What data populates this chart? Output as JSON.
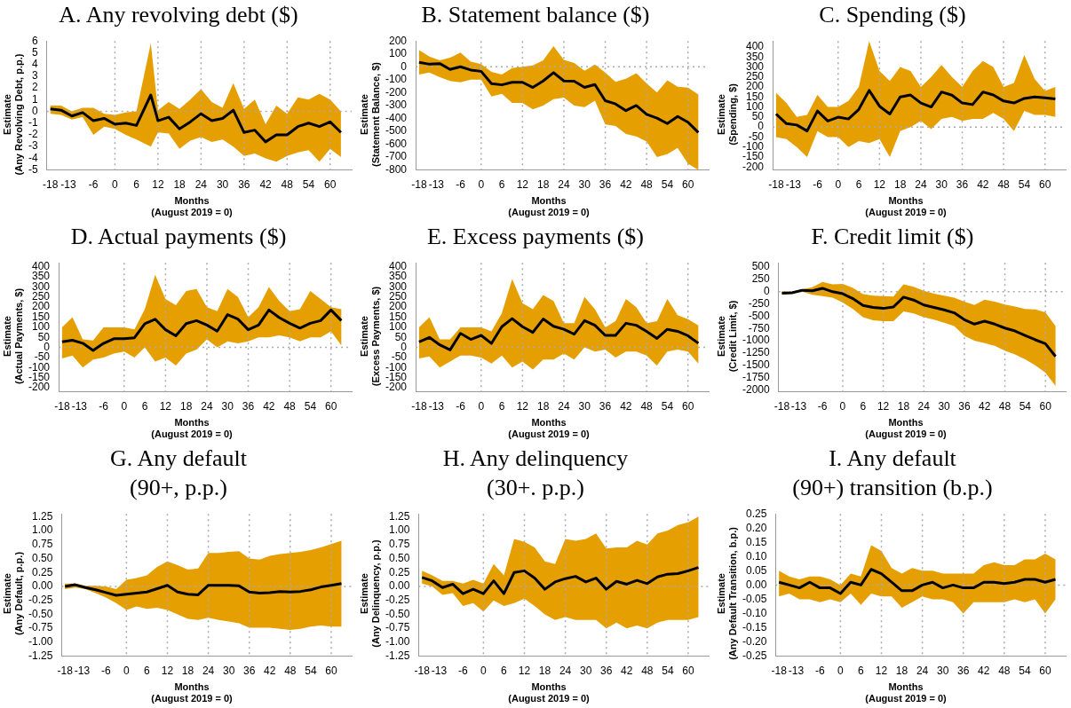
{
  "chart_data": [
    {
      "type": "line",
      "title": "A. Any revolving debt ($)",
      "xlabel": "Months\n(August 2019 = 0)",
      "ylabel": "Estimate\n(Any Revolving Debt, p.p.)",
      "x": [
        -18,
        -15,
        -12,
        -9,
        -6,
        -3,
        0,
        3,
        6,
        10,
        12,
        15,
        18,
        21,
        24,
        27,
        30,
        33,
        36,
        39,
        42,
        45,
        48,
        51,
        54,
        57,
        60,
        63
      ],
      "xlim": [
        -19,
        66
      ],
      "xticks": [
        -18,
        -13,
        -6,
        0,
        6,
        12,
        18,
        24,
        30,
        36,
        42,
        48,
        54,
        60
      ],
      "ylim": [
        -5,
        6
      ],
      "yticks": [
        -5,
        -4,
        -3,
        -2,
        -1,
        0,
        1,
        2,
        3,
        4,
        5,
        6
      ],
      "series": [
        {
          "color": "#000000",
          "values": [
            0.2,
            0.1,
            -0.4,
            -0.1,
            -0.8,
            -0.6,
            -1.1,
            -1.0,
            -1.2,
            1.4,
            -0.8,
            -0.5,
            -1.5,
            -0.9,
            -0.2,
            -0.8,
            -0.6,
            0.1,
            -1.8,
            -1.6,
            -2.6,
            -2.0,
            -2.0,
            -1.3,
            -1.0,
            -1.3,
            -0.9,
            -1.8
          ],
          "upper": [
            0.5,
            0.5,
            0,
            0.3,
            0.3,
            -0.2,
            -0.3,
            -0.1,
            0,
            5.8,
            0.1,
            0.8,
            0.2,
            1.0,
            1.9,
            0.8,
            0.3,
            2.4,
            0.2,
            1.0,
            -1.1,
            0.5,
            -0.2,
            1.2,
            1.0,
            1.5,
            1.0,
            0
          ],
          "lower": [
            -0.2,
            -0.3,
            -0.7,
            -0.5,
            -2.0,
            -1.3,
            -1.5,
            -2.0,
            -2.4,
            -3.0,
            -1.8,
            -1.9,
            -3.2,
            -2.5,
            -2.2,
            -2.6,
            -2.4,
            -3.0,
            -3.8,
            -3.6,
            -4.0,
            -4.3,
            -3.8,
            -3.5,
            -3.3,
            -4.3,
            -3.2,
            -3.9
          ]
        }
      ],
      "ref_lines": [
        {
          "axis": "x",
          "value": 0,
          "color": "#aaaaaa",
          "line_style": "dotted"
        },
        {
          "axis": "x",
          "value": 12,
          "color": "#aaaaaa",
          "line_style": "dotted"
        },
        {
          "axis": "x",
          "value": 24,
          "color": "#aaaaaa",
          "line_style": "dotted"
        },
        {
          "axis": "x",
          "value": 36,
          "color": "#aaaaaa",
          "line_style": "dotted"
        },
        {
          "axis": "x",
          "value": 48,
          "color": "#aaaaaa",
          "line_style": "dotted"
        },
        {
          "axis": "x",
          "value": 60,
          "color": "#aaaaaa",
          "line_style": "dotted"
        },
        {
          "axis": "y",
          "value": 0,
          "color": "#aaaaaa",
          "line_style": "dotted"
        }
      ]
    },
    {
      "type": "line",
      "title": "B. Statement balance ($)",
      "xlabel": "Months\n(August 2019 = 0)",
      "ylabel": "Estimate\n(Statement Balance, $)",
      "x": [
        -18,
        -15,
        -12,
        -9,
        -6,
        -3,
        0,
        3,
        6,
        9,
        12,
        15,
        18,
        21,
        24,
        27,
        30,
        33,
        36,
        39,
        42,
        45,
        48,
        51,
        54,
        57,
        60,
        63
      ],
      "xlim": [
        -19,
        66
      ],
      "xticks": [
        -18,
        -13,
        -6,
        0,
        6,
        12,
        18,
        24,
        30,
        36,
        42,
        48,
        54,
        60
      ],
      "ylim": [
        -800,
        200
      ],
      "yticks": [
        -800,
        -700,
        -600,
        -500,
        -400,
        -300,
        -200,
        -100,
        0,
        100,
        200
      ],
      "series": [
        {
          "color": "#000000",
          "values": [
            34,
            20,
            25,
            -20,
            0,
            -25,
            -35,
            -130,
            -140,
            -120,
            -120,
            -160,
            -110,
            -45,
            -110,
            -112,
            -160,
            -137,
            -263,
            -288,
            -340,
            -300,
            -368,
            -398,
            -440,
            -385,
            -430,
            -510
          ],
          "upper": [
            130,
            80,
            50,
            70,
            110,
            40,
            20,
            -40,
            -60,
            -10,
            0,
            10,
            50,
            160,
            54,
            29,
            -30,
            17,
            -44,
            -117,
            -93,
            -50,
            -129,
            -200,
            -105,
            -154,
            -161,
            -215
          ],
          "lower": [
            -60,
            -45,
            -80,
            -110,
            -120,
            -100,
            -100,
            -230,
            -210,
            -280,
            -280,
            -330,
            -300,
            -250,
            -239,
            -300,
            -312,
            -263,
            -446,
            -459,
            -520,
            -540,
            -580,
            -700,
            -678,
            -629,
            -751,
            -800
          ]
        }
      ],
      "ref_lines": [
        {
          "axis": "x",
          "value": 0,
          "color": "#aaaaaa",
          "line_style": "dotted"
        },
        {
          "axis": "x",
          "value": 12,
          "color": "#aaaaaa",
          "line_style": "dotted"
        },
        {
          "axis": "x",
          "value": 24,
          "color": "#aaaaaa",
          "line_style": "dotted"
        },
        {
          "axis": "x",
          "value": 36,
          "color": "#aaaaaa",
          "line_style": "dotted"
        },
        {
          "axis": "x",
          "value": 48,
          "color": "#aaaaaa",
          "line_style": "dotted"
        },
        {
          "axis": "x",
          "value": 60,
          "color": "#aaaaaa",
          "line_style": "dotted"
        },
        {
          "axis": "y",
          "value": 0,
          "color": "#aaaaaa",
          "line_style": "dotted"
        }
      ]
    },
    {
      "type": "line",
      "title": "C. Spending ($)",
      "xlabel": "Months\n(August 2019 = 0)",
      "ylabel": "Estimate\n(Spending, $)",
      "x": [
        -18,
        -15,
        -12,
        -9,
        -6,
        -3,
        0,
        3,
        6,
        9,
        12,
        15,
        18,
        21,
        24,
        27,
        30,
        33,
        36,
        39,
        42,
        45,
        48,
        51,
        54,
        57,
        60,
        63
      ],
      "xlim": [
        -19,
        66
      ],
      "xticks": [
        -18,
        -13,
        -6,
        0,
        6,
        12,
        18,
        24,
        30,
        36,
        42,
        48,
        54,
        60
      ],
      "ylim": [
        -215,
        430
      ],
      "yticks": [
        -200,
        -150,
        -100,
        -50,
        0,
        50,
        100,
        150,
        200,
        250,
        300,
        350,
        400
      ],
      "series": [
        {
          "color": "#000000",
          "values": [
            65,
            17,
            10,
            -20,
            80,
            30,
            49,
            40,
            88,
            183,
            104,
            65,
            150,
            160,
            120,
            100,
            175,
            159,
            120,
            112,
            175,
            160,
            130,
            120,
            143,
            150,
            146,
            140
          ],
          "upper": [
            170,
            120,
            50,
            60,
            160,
            100,
            100,
            130,
            200,
            430,
            280,
            230,
            300,
            280,
            200,
            250,
            310,
            250,
            200,
            280,
            330,
            300,
            200,
            220,
            360,
            240,
            180,
            200
          ],
          "lower": [
            -50,
            -60,
            -100,
            -150,
            -20,
            -50,
            -50,
            -100,
            -70,
            -80,
            -60,
            -150,
            -20,
            0,
            30,
            -10,
            40,
            50,
            30,
            40,
            40,
            70,
            40,
            -20,
            80,
            60,
            60,
            50
          ]
        }
      ],
      "ref_lines": [
        {
          "axis": "x",
          "value": 0,
          "color": "#aaaaaa",
          "line_style": "dotted"
        },
        {
          "axis": "x",
          "value": 12,
          "color": "#aaaaaa",
          "line_style": "dotted"
        },
        {
          "axis": "x",
          "value": 24,
          "color": "#aaaaaa",
          "line_style": "dotted"
        },
        {
          "axis": "x",
          "value": 36,
          "color": "#aaaaaa",
          "line_style": "dotted"
        },
        {
          "axis": "x",
          "value": 48,
          "color": "#aaaaaa",
          "line_style": "dotted"
        },
        {
          "axis": "x",
          "value": 60,
          "color": "#aaaaaa",
          "line_style": "dotted"
        },
        {
          "axis": "y",
          "value": 0,
          "color": "#aaaaaa",
          "line_style": "dotted"
        }
      ]
    },
    {
      "type": "line",
      "title": "D. Actual payments ($)",
      "xlabel": "Months\n(August 2019 = 0)",
      "ylabel": "Estimate\n(Actual Payments, $)",
      "x": [
        -18,
        -15,
        -12,
        -9,
        -6,
        -3,
        0,
        3,
        6,
        9,
        12,
        15,
        18,
        21,
        24,
        27,
        30,
        33,
        36,
        39,
        42,
        45,
        48,
        51,
        54,
        57,
        60,
        63
      ],
      "xlim": [
        -19,
        66
      ],
      "xticks": [
        -18,
        -13,
        -6,
        0,
        6,
        12,
        18,
        24,
        30,
        36,
        42,
        48,
        54,
        60
      ],
      "ylim": [
        -220,
        420
      ],
      "yticks": [
        -200,
        -150,
        -100,
        -50,
        0,
        50,
        100,
        150,
        200,
        250,
        300,
        350,
        400
      ],
      "series": [
        {
          "color": "#000000",
          "values": [
            28,
            36,
            21,
            -15,
            20,
            43,
            43,
            48,
            118,
            140,
            88,
            58,
            118,
            133,
            111,
            81,
            163,
            141,
            88,
            111,
            186,
            148,
            120,
            96,
            120,
            133,
            186,
            133
          ],
          "upper": [
            100,
            150,
            40,
            35,
            100,
            100,
            100,
            90,
            190,
            360,
            240,
            210,
            280,
            290,
            200,
            180,
            290,
            250,
            150,
            200,
            300,
            230,
            180,
            190,
            280,
            240,
            200,
            190
          ],
          "lower": [
            -55,
            -40,
            -100,
            -60,
            -50,
            -30,
            -20,
            -50,
            0,
            -70,
            -50,
            -90,
            -30,
            -10,
            40,
            0,
            30,
            20,
            30,
            50,
            50,
            60,
            50,
            30,
            50,
            50,
            80,
            10
          ]
        }
      ],
      "ref_lines": [
        {
          "axis": "x",
          "value": 0,
          "color": "#aaaaaa",
          "line_style": "dotted"
        },
        {
          "axis": "x",
          "value": 12,
          "color": "#aaaaaa",
          "line_style": "dotted"
        },
        {
          "axis": "x",
          "value": 24,
          "color": "#aaaaaa",
          "line_style": "dotted"
        },
        {
          "axis": "x",
          "value": 36,
          "color": "#aaaaaa",
          "line_style": "dotted"
        },
        {
          "axis": "x",
          "value": 48,
          "color": "#aaaaaa",
          "line_style": "dotted"
        },
        {
          "axis": "x",
          "value": 60,
          "color": "#aaaaaa",
          "line_style": "dotted"
        },
        {
          "axis": "y",
          "value": 0,
          "color": "#aaaaaa",
          "line_style": "dotted"
        }
      ]
    },
    {
      "type": "line",
      "title": "E. Excess payments ($)",
      "xlabel": "Months\n(August 2019 = 0)",
      "ylabel": "Estimate\n(Excess Payments, $)",
      "x": [
        -18,
        -15,
        -12,
        -9,
        -6,
        -3,
        0,
        3,
        6,
        9,
        12,
        15,
        18,
        21,
        24,
        27,
        30,
        33,
        36,
        39,
        42,
        45,
        48,
        51,
        54,
        57,
        60,
        63
      ],
      "xlim": [
        -19,
        66
      ],
      "xticks": [
        -18,
        -13,
        -6,
        0,
        6,
        12,
        18,
        24,
        30,
        36,
        42,
        48,
        54,
        60
      ],
      "ylim": [
        -220,
        420
      ],
      "yticks": [
        -200,
        -150,
        -100,
        -50,
        0,
        50,
        100,
        150,
        200,
        250,
        300,
        350,
        400
      ],
      "series": [
        {
          "color": "#000000",
          "values": [
            28,
            50,
            13,
            -12,
            70,
            40,
            60,
            20,
            103,
            143,
            103,
            75,
            141,
            105,
            90,
            66,
            133,
            110,
            60,
            60,
            120,
            110,
            80,
            45,
            90,
            80,
            58,
            21
          ],
          "upper": [
            100,
            150,
            40,
            40,
            100,
            100,
            100,
            80,
            170,
            340,
            220,
            190,
            260,
            230,
            120,
            120,
            250,
            190,
            100,
            130,
            240,
            200,
            120,
            130,
            240,
            160,
            140,
            110
          ],
          "lower": [
            -55,
            -45,
            -100,
            -70,
            -40,
            -40,
            -50,
            -80,
            -40,
            -100,
            -70,
            -110,
            -60,
            -60,
            -30,
            -60,
            0,
            -20,
            -10,
            -50,
            -20,
            -20,
            -40,
            -90,
            -20,
            -10,
            -20,
            -80
          ]
        }
      ],
      "ref_lines": [
        {
          "axis": "x",
          "value": 0,
          "color": "#aaaaaa",
          "line_style": "dotted"
        },
        {
          "axis": "x",
          "value": 12,
          "color": "#aaaaaa",
          "line_style": "dotted"
        },
        {
          "axis": "x",
          "value": 24,
          "color": "#aaaaaa",
          "line_style": "dotted"
        },
        {
          "axis": "x",
          "value": 36,
          "color": "#aaaaaa",
          "line_style": "dotted"
        },
        {
          "axis": "x",
          "value": 48,
          "color": "#aaaaaa",
          "line_style": "dotted"
        },
        {
          "axis": "x",
          "value": 60,
          "color": "#aaaaaa",
          "line_style": "dotted"
        },
        {
          "axis": "y",
          "value": 0,
          "color": "#aaaaaa",
          "line_style": "dotted"
        }
      ]
    },
    {
      "type": "line",
      "title": "F. Credit limit ($)",
      "xlabel": "Months\n(August 2019 = 0)",
      "ylabel": "Estimate\n(Credit Limit, $)",
      "x": [
        -18,
        -15,
        -12,
        -9,
        -6,
        -3,
        0,
        3,
        6,
        9,
        12,
        15,
        18,
        21,
        24,
        27,
        30,
        33,
        36,
        39,
        42,
        45,
        48,
        51,
        54,
        57,
        60,
        63
      ],
      "xlim": [
        -19,
        66
      ],
      "xticks": [
        -18,
        -13,
        -6,
        0,
        6,
        12,
        18,
        24,
        30,
        36,
        42,
        48,
        54,
        60
      ],
      "ylim": [
        -2040,
        590
      ],
      "yticks": [
        -2000,
        -1750,
        -1500,
        -1250,
        -1000,
        -750,
        -500,
        -250,
        0,
        250,
        500
      ],
      "series": [
        {
          "color": "#000000",
          "values": [
            -30,
            -20,
            30,
            20,
            70,
            0,
            -40,
            -140,
            -280,
            -320,
            -340,
            -310,
            -110,
            -170,
            -270,
            -320,
            -370,
            -430,
            -570,
            -660,
            -600,
            -660,
            -740,
            -800,
            -890,
            -980,
            -1060,
            -1320
          ],
          "upper": [
            10,
            0,
            50,
            90,
            200,
            150,
            160,
            80,
            -50,
            -80,
            -90,
            -100,
            150,
            100,
            20,
            -40,
            -80,
            -120,
            -200,
            -270,
            -160,
            -200,
            -260,
            -300,
            -350,
            -360,
            -420,
            -700
          ],
          "lower": [
            -50,
            -40,
            0,
            -60,
            -90,
            -120,
            -220,
            -350,
            -520,
            -580,
            -600,
            -600,
            -400,
            -440,
            -520,
            -570,
            -630,
            -700,
            -900,
            -1000,
            -1050,
            -1100,
            -1200,
            -1280,
            -1380,
            -1500,
            -1650,
            -1920
          ]
        }
      ],
      "ref_lines": [
        {
          "axis": "x",
          "value": 0,
          "color": "#aaaaaa",
          "line_style": "dotted"
        },
        {
          "axis": "x",
          "value": 12,
          "color": "#aaaaaa",
          "line_style": "dotted"
        },
        {
          "axis": "x",
          "value": 24,
          "color": "#aaaaaa",
          "line_style": "dotted"
        },
        {
          "axis": "x",
          "value": 36,
          "color": "#aaaaaa",
          "line_style": "dotted"
        },
        {
          "axis": "x",
          "value": 48,
          "color": "#aaaaaa",
          "line_style": "dotted"
        },
        {
          "axis": "x",
          "value": 60,
          "color": "#aaaaaa",
          "line_style": "dotted"
        },
        {
          "axis": "y",
          "value": 0,
          "color": "#aaaaaa",
          "line_style": "dotted"
        }
      ]
    },
    {
      "type": "line",
      "title": "G. Any default\n(90+, p.p.)",
      "xlabel": "Months\n(August 2019 = 0)",
      "ylabel": "Estimate\n(Any Default, p.p.)",
      "x": [
        -18,
        -15,
        -12,
        -9,
        -6,
        -3,
        0,
        3,
        6,
        9,
        12,
        15,
        18,
        21,
        24,
        27,
        30,
        33,
        36,
        39,
        42,
        45,
        48,
        51,
        54,
        57,
        60,
        63
      ],
      "xlim": [
        -19,
        66
      ],
      "xticks": [
        -18,
        -13,
        -6,
        0,
        6,
        12,
        18,
        24,
        30,
        36,
        42,
        48,
        54,
        60
      ],
      "ylim": [
        -1.25,
        1.3
      ],
      "yticks": [
        -1.25,
        {
          "value": -1,
          "label": "-1.00"
        },
        -0.75,
        {
          "value": -0.5,
          "label": "-0.50"
        },
        -0.25,
        {
          "value": 0,
          "label": "0.00"
        },
        0.25,
        {
          "value": 0.5,
          "label": "0.50"
        },
        0.75,
        {
          "value": 1,
          "label": "1.00"
        },
        1.25
      ],
      "series": [
        {
          "color": "#000000",
          "values": [
            0,
            0.03,
            -0.02,
            -0.06,
            -0.11,
            -0.16,
            -0.14,
            -0.12,
            -0.1,
            -0.04,
            0.02,
            -0.1,
            -0.14,
            -0.15,
            0.02,
            0.02,
            0.02,
            0.01,
            -0.1,
            -0.12,
            -0.11,
            -0.09,
            -0.1,
            -0.09,
            -0.06,
            -0.01,
            0.02,
            0.05
          ],
          "upper": [
            0.05,
            0.05,
            0.01,
            0.01,
            0,
            -0.05,
            0.12,
            0.15,
            0.2,
            0.35,
            0.45,
            0.38,
            0.3,
            0.32,
            0.6,
            0.6,
            0.62,
            0.63,
            0.5,
            0.48,
            0.55,
            0.58,
            0.6,
            0.62,
            0.65,
            0.7,
            0.76,
            0.82
          ],
          "lower": [
            -0.05,
            -0.02,
            -0.05,
            -0.12,
            -0.2,
            -0.3,
            -0.42,
            -0.36,
            -0.4,
            -0.38,
            -0.42,
            -0.5,
            -0.58,
            -0.6,
            -0.56,
            -0.6,
            -0.63,
            -0.66,
            -0.74,
            -0.74,
            -0.74,
            -0.76,
            -0.78,
            -0.76,
            -0.72,
            -0.7,
            -0.72,
            -0.72
          ]
        }
      ],
      "ref_lines": [
        {
          "axis": "x",
          "value": 0,
          "color": "#aaaaaa",
          "line_style": "dotted"
        },
        {
          "axis": "x",
          "value": 12,
          "color": "#aaaaaa",
          "line_style": "dotted"
        },
        {
          "axis": "x",
          "value": 24,
          "color": "#aaaaaa",
          "line_style": "dotted"
        },
        {
          "axis": "x",
          "value": 36,
          "color": "#aaaaaa",
          "line_style": "dotted"
        },
        {
          "axis": "x",
          "value": 48,
          "color": "#aaaaaa",
          "line_style": "dotted"
        },
        {
          "axis": "x",
          "value": 60,
          "color": "#aaaaaa",
          "line_style": "dotted"
        },
        {
          "axis": "y",
          "value": 0,
          "color": "#aaaaaa",
          "line_style": "dotted"
        }
      ]
    },
    {
      "type": "line",
      "title": "H. Any delinquency\n(30+. p.p.)",
      "xlabel": "Months\n(August 2019 = 0)",
      "ylabel": "Estimate\n(Any Delinquency, p.p.)",
      "x": [
        -18,
        -15,
        -12,
        -9,
        -6,
        -3,
        0,
        3,
        6,
        9,
        12,
        15,
        18,
        21,
        24,
        27,
        30,
        33,
        36,
        39,
        42,
        45,
        48,
        51,
        54,
        57,
        60,
        63
      ],
      "xlim": [
        -19,
        66
      ],
      "xticks": [
        -18,
        -13,
        -6,
        0,
        6,
        12,
        18,
        24,
        30,
        36,
        42,
        48,
        54,
        60
      ],
      "ylim": [
        -1.25,
        1.3
      ],
      "yticks": [
        -1.25,
        {
          "value": -1,
          "label": "-1.00"
        },
        -0.75,
        {
          "value": -0.5,
          "label": "-0.50"
        },
        -0.25,
        {
          "value": 0,
          "label": "0.00"
        },
        0.25,
        {
          "value": 0.5,
          "label": "0.50"
        },
        0.75,
        {
          "value": 1,
          "label": "1.00"
        },
        1.25
      ],
      "series": [
        {
          "color": "#000000",
          "values": [
            0.16,
            0.1,
            -0.02,
            0.04,
            -0.13,
            -0.05,
            -0.13,
            0.1,
            -0.13,
            0.25,
            0.28,
            0.15,
            -0.05,
            0.08,
            0.14,
            0.18,
            0.08,
            0.15,
            -0.05,
            0.09,
            0.04,
            0.11,
            0.05,
            0.17,
            0.22,
            0.23,
            0.28,
            0.34
          ],
          "upper": [
            0.28,
            0.2,
            0.1,
            0.1,
            0.05,
            0.12,
            0.05,
            0.4,
            0.2,
            0.85,
            0.8,
            0.7,
            0.45,
            0.4,
            0.85,
            0.82,
            0.85,
            0.95,
            0.68,
            0.7,
            0.7,
            0.82,
            0.75,
            0.95,
            1.0,
            1.1,
            1.15,
            1.25
          ],
          "lower": [
            0.05,
            0.0,
            -0.15,
            -0.12,
            -0.35,
            -0.3,
            -0.45,
            -0.25,
            -0.35,
            -0.3,
            -0.22,
            -0.35,
            -0.5,
            -0.6,
            -0.55,
            -0.6,
            -0.6,
            -0.6,
            -0.75,
            -0.65,
            -0.75,
            -0.7,
            -0.75,
            -0.65,
            -0.6,
            -0.6,
            -0.6,
            -0.55
          ]
        }
      ],
      "ref_lines": [
        {
          "axis": "x",
          "value": 0,
          "color": "#aaaaaa",
          "line_style": "dotted"
        },
        {
          "axis": "x",
          "value": 12,
          "color": "#aaaaaa",
          "line_style": "dotted"
        },
        {
          "axis": "x",
          "value": 24,
          "color": "#aaaaaa",
          "line_style": "dotted"
        },
        {
          "axis": "x",
          "value": 36,
          "color": "#aaaaaa",
          "line_style": "dotted"
        },
        {
          "axis": "x",
          "value": 48,
          "color": "#aaaaaa",
          "line_style": "dotted"
        },
        {
          "axis": "x",
          "value": 60,
          "color": "#aaaaaa",
          "line_style": "dotted"
        },
        {
          "axis": "y",
          "value": 0,
          "color": "#aaaaaa",
          "line_style": "dotted"
        }
      ]
    },
    {
      "type": "line",
      "title": "I. Any default\n(90+) transition (b.p.)",
      "xlabel": "Months\n(August 2019 = 0)",
      "ylabel": "Estimate\n(Any Default Transition, b.p.)",
      "x": [
        -18,
        -15,
        -12,
        -9,
        -6,
        -3,
        0,
        3,
        6,
        9,
        12,
        15,
        18,
        21,
        24,
        27,
        30,
        33,
        36,
        39,
        42,
        45,
        48,
        51,
        54,
        57,
        60,
        63
      ],
      "xlim": [
        -19,
        66
      ],
      "xticks": [
        -18,
        -13,
        -6,
        0,
        6,
        12,
        18,
        24,
        30,
        36,
        42,
        48,
        54,
        60
      ],
      "ylim": [
        -0.25,
        0.25
      ],
      "yticks": [
        -0.25,
        {
          "value": -0.2,
          "label": "-0.20"
        },
        -0.15,
        {
          "value": -0.1,
          "label": "-0.10"
        },
        -0.05,
        {
          "value": 0,
          "label": "0.00"
        },
        0.05,
        {
          "value": 0.1,
          "label": "0.10"
        },
        0.15,
        {
          "value": 0.2,
          "label": "0.20"
        },
        0.25
      ],
      "series": [
        {
          "color": "#000000",
          "values": [
            0.01,
            0.0,
            -0.01,
            0.01,
            -0.01,
            -0.01,
            -0.03,
            0.01,
            0,
            0.055,
            0.04,
            0.01,
            -0.02,
            -0.02,
            0,
            0.01,
            -0.01,
            0,
            -0.01,
            -0.01,
            0.01,
            0.01,
            0.005,
            0.01,
            0.02,
            0.02,
            0.01,
            0.02
          ],
          "upper": [
            0.05,
            0.03,
            0.02,
            0.03,
            0.03,
            0.02,
            0.0,
            0.04,
            0.03,
            0.14,
            0.12,
            0.06,
            0.04,
            0.06,
            0.05,
            0.05,
            0.04,
            0.04,
            0.04,
            0.04,
            0.07,
            0.08,
            0.07,
            0.07,
            0.09,
            0.09,
            0.11,
            0.09
          ],
          "lower": [
            -0.04,
            -0.03,
            -0.05,
            -0.05,
            -0.06,
            -0.05,
            -0.06,
            -0.03,
            -0.07,
            -0.03,
            -0.04,
            -0.04,
            -0.08,
            -0.06,
            -0.04,
            -0.05,
            -0.05,
            -0.06,
            -0.1,
            -0.06,
            -0.06,
            -0.06,
            -0.06,
            -0.05,
            -0.06,
            -0.05,
            -0.1,
            -0.05
          ]
        }
      ],
      "ref_lines": [
        {
          "axis": "x",
          "value": 0,
          "color": "#aaaaaa",
          "line_style": "dotted"
        },
        {
          "axis": "x",
          "value": 12,
          "color": "#aaaaaa",
          "line_style": "dotted"
        },
        {
          "axis": "x",
          "value": 24,
          "color": "#aaaaaa",
          "line_style": "dotted"
        },
        {
          "axis": "x",
          "value": 36,
          "color": "#aaaaaa",
          "line_style": "dotted"
        },
        {
          "axis": "x",
          "value": 48,
          "color": "#aaaaaa",
          "line_style": "dotted"
        },
        {
          "axis": "x",
          "value": 60,
          "color": "#aaaaaa",
          "line_style": "dotted"
        },
        {
          "axis": "y",
          "value": 0,
          "color": "#aaaaaa",
          "line_style": "dotted"
        }
      ]
    }
  ]
}
